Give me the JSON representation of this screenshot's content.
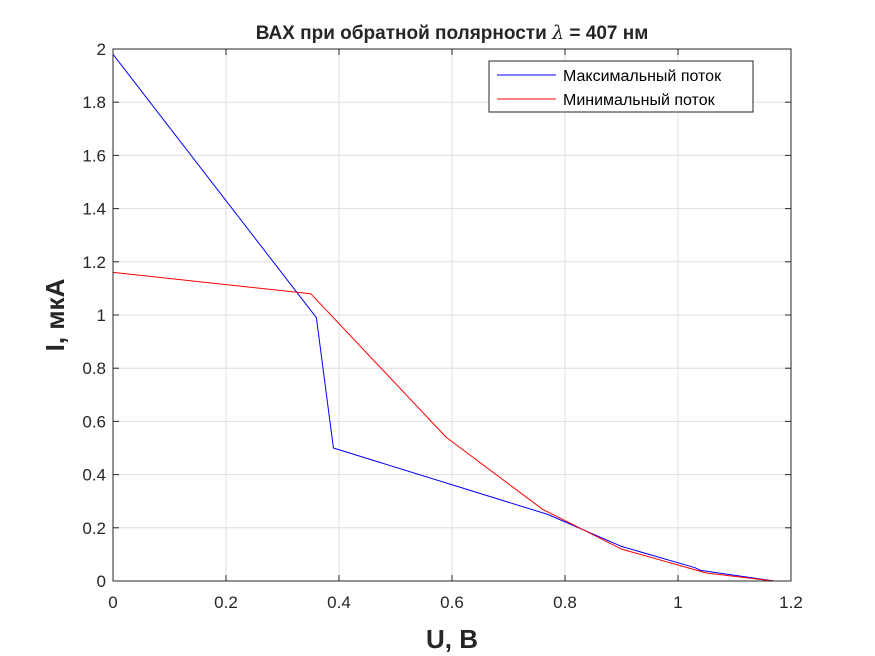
{
  "chart_data": {
    "type": "line",
    "title_prefix": "ВАХ при обратной полярности ",
    "title_symbol": "λ",
    "title_suffix": " = 407 нм",
    "xlabel": "U, В",
    "ylabel": "I, мкА",
    "xlim": [
      0,
      1.2
    ],
    "ylim": [
      0,
      2
    ],
    "xticks": [
      0,
      0.2,
      0.4,
      0.6,
      0.8,
      1,
      1.2
    ],
    "xtick_labels": [
      "0",
      "0.2",
      "0.4",
      "0.6",
      "0.8",
      "1",
      "1.2"
    ],
    "yticks": [
      0,
      0.2,
      0.4,
      0.6,
      0.8,
      1,
      1.2,
      1.4,
      1.6,
      1.8,
      2
    ],
    "ytick_labels": [
      "0",
      "0.2",
      "0.4",
      "0.6",
      "0.8",
      "1",
      "1.2",
      "1.4",
      "1.6",
      "1.8",
      "2"
    ],
    "grid": true,
    "legend_position": "top-right",
    "series": [
      {
        "name": "Максимальный поток",
        "color": "#0000ff",
        "x": [
          0,
          0.36,
          0.39,
          0.77,
          0.9,
          1.03,
          1.04,
          1.17
        ],
        "y": [
          1.98,
          0.99,
          0.5,
          0.25,
          0.13,
          0.05,
          0.04,
          0.0
        ]
      },
      {
        "name": "Минимальный поток",
        "color": "#ff0000",
        "x": [
          0,
          0.35,
          0.59,
          0.76,
          0.9,
          1.05,
          1.17
        ],
        "y": [
          1.16,
          1.08,
          0.54,
          0.27,
          0.12,
          0.03,
          0.0
        ]
      }
    ]
  }
}
